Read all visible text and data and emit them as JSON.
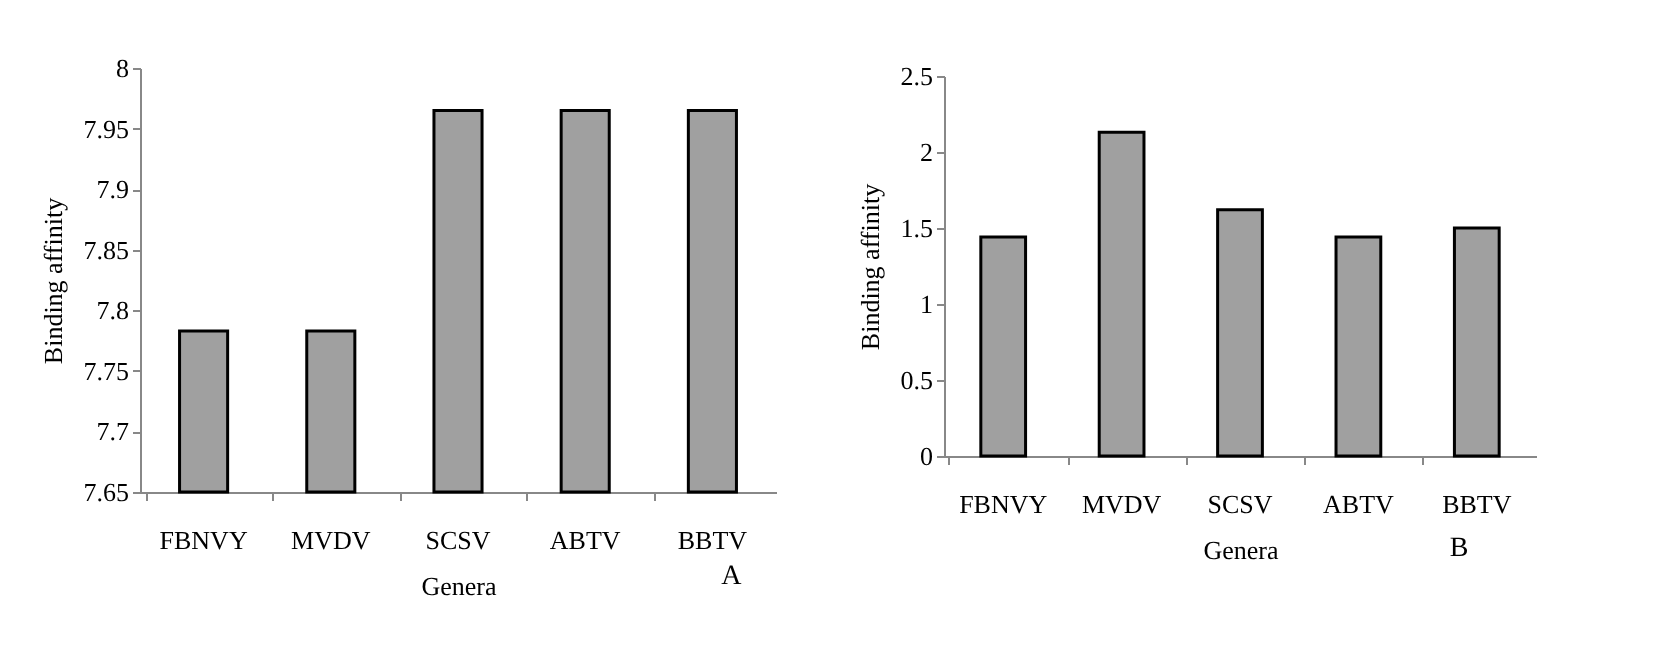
{
  "chart_data": [
    {
      "type": "bar",
      "categories": [
        "FBNVY",
        "MVDV",
        "SCSV",
        "ABTV",
        "BBTV"
      ],
      "values": [
        7.783,
        7.783,
        7.965,
        7.965,
        7.965
      ],
      "color": "#a0a0a0",
      "xlabel": "Genera",
      "ylabel": "Binding affinity",
      "ylim": [
        7.65,
        8
      ],
      "yticks": [
        7.65,
        7.7,
        7.75,
        7.8,
        7.85,
        7.9,
        7.95,
        8
      ],
      "annotations": [
        "A"
      ]
    },
    {
      "type": "bar",
      "categories": [
        "FBNVY",
        "MVDV",
        "SCSV",
        "ABTV",
        "BBTV"
      ],
      "values": [
        1.44,
        2.13,
        1.62,
        1.44,
        1.5
      ],
      "color": "#a0a0a0",
      "xlabel": "Genera",
      "ylabel": "Binding affinity",
      "ylim": [
        0,
        2.5
      ],
      "yticks": [
        0,
        0.5,
        1,
        1.5,
        2,
        2.5
      ],
      "annotations": [
        "B"
      ]
    }
  ]
}
